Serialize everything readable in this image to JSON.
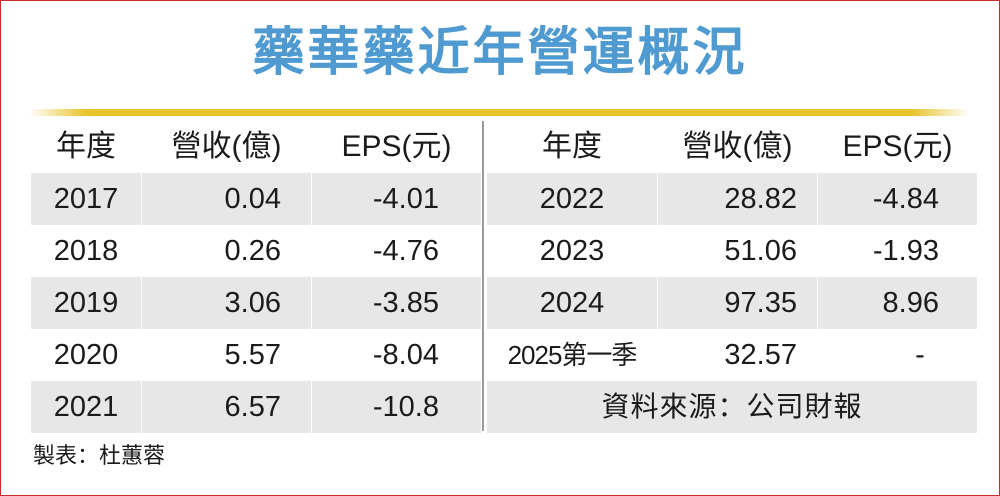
{
  "title": "藥華藥近年營運概況",
  "headers": {
    "year": "年度",
    "revenue": "營收(億)",
    "eps": "EPS(元)"
  },
  "left_rows": [
    {
      "year": "2017",
      "revenue": "0.04",
      "eps": "-4.01"
    },
    {
      "year": "2018",
      "revenue": "0.26",
      "eps": "-4.76"
    },
    {
      "year": "2019",
      "revenue": "3.06",
      "eps": "-3.85"
    },
    {
      "year": "2020",
      "revenue": "5.57",
      "eps": "-8.04"
    },
    {
      "year": "2021",
      "revenue": "6.57",
      "eps": "-10.8"
    }
  ],
  "right_rows": [
    {
      "year": "2022",
      "revenue": "28.82",
      "eps": "-4.84"
    },
    {
      "year": "2023",
      "revenue": "51.06",
      "eps": "-1.93"
    },
    {
      "year": "2024",
      "revenue": "97.35",
      "eps": "8.96"
    },
    {
      "year": "2025第一季",
      "revenue": "32.57",
      "eps": "-"
    }
  ],
  "source": "資料來源：公司財報",
  "credit": "製表：杜蕙蓉",
  "colors": {
    "title": "#4f9bd1",
    "rule": "#e8c42e",
    "stripe": "#e7e7e8",
    "border": "#cc2b2b"
  }
}
